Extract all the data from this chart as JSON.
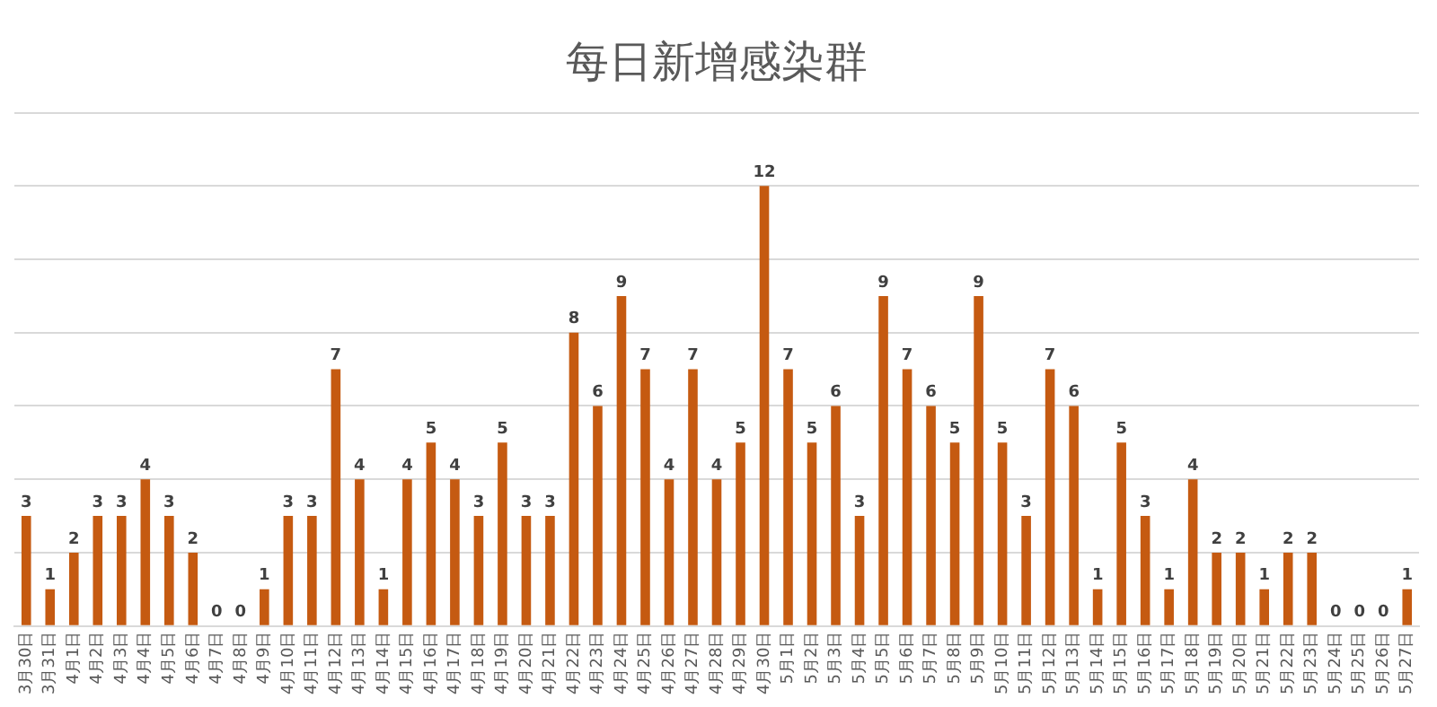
{
  "chart_data": {
    "type": "bar",
    "title": "每日新增感染群",
    "categories": [
      "3月30日",
      "3月31日",
      "4月1日",
      "4月2日",
      "4月3日",
      "4月4日",
      "4月5日",
      "4月6日",
      "4月7日",
      "4月8日",
      "4月9日",
      "4月10日",
      "4月11日",
      "4月12日",
      "4月13日",
      "4月14日",
      "4月15日",
      "4月16日",
      "4月17日",
      "4月18日",
      "4月19日",
      "4月20日",
      "4月21日",
      "4月22日",
      "4月23日",
      "4月24日",
      "4月25日",
      "4月26日",
      "4月27日",
      "4月28日",
      "4月29日",
      "4月30日",
      "5月1日",
      "5月2日",
      "5月3日",
      "5月4日",
      "5月5日",
      "5月6日",
      "5月7日",
      "5月8日",
      "5月9日",
      "5月10日",
      "5月11日",
      "5月12日",
      "5月13日",
      "5月14日",
      "5月15日",
      "5月16日",
      "5月17日",
      "5月18日",
      "5月19日",
      "5月20日",
      "5月21日",
      "5月22日",
      "5月23日",
      "5月24日",
      "5月25日",
      "5月26日",
      "5月27日"
    ],
    "values": [
      3,
      1,
      2,
      3,
      3,
      4,
      3,
      2,
      0,
      0,
      1,
      3,
      3,
      7,
      4,
      1,
      4,
      5,
      4,
      3,
      5,
      3,
      3,
      8,
      6,
      9,
      7,
      4,
      7,
      4,
      5,
      12,
      7,
      5,
      6,
      3,
      9,
      7,
      6,
      5,
      9,
      5,
      3,
      7,
      6,
      1,
      5,
      3,
      1,
      4,
      2,
      2,
      1,
      2,
      2,
      0,
      0,
      0,
      1
    ],
    "color": "#c55a11",
    "grid": "y",
    "tick_labels": "x",
    "data_labels": true,
    "legend": false
  }
}
